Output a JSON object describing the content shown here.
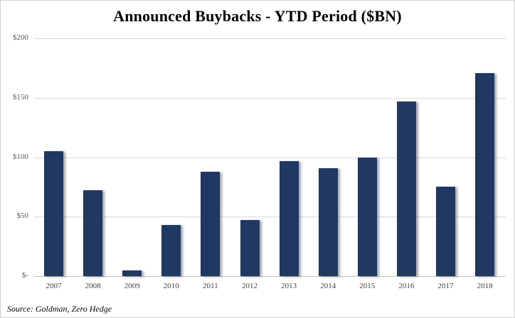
{
  "chart_data": {
    "type": "bar",
    "title": "Announced Buybacks - YTD Period ($BN)",
    "xlabel": "",
    "ylabel": "",
    "categories": [
      "2007",
      "2008",
      "2009",
      "2010",
      "2011",
      "2012",
      "2013",
      "2014",
      "2015",
      "2016",
      "2017",
      "2018"
    ],
    "values": [
      105,
      72,
      5,
      43,
      88,
      47,
      97,
      91,
      100,
      147,
      75,
      171
    ],
    "ylim": [
      0,
      200
    ],
    "yticks": [
      0,
      50,
      100,
      150,
      200
    ],
    "ytick_labels": [
      "$-",
      "$50",
      "$100",
      "$150",
      "$200"
    ],
    "grid": true,
    "legend": null,
    "bar_color": "#1f3864",
    "source": "Source: Goldman, Zero Hedge"
  }
}
